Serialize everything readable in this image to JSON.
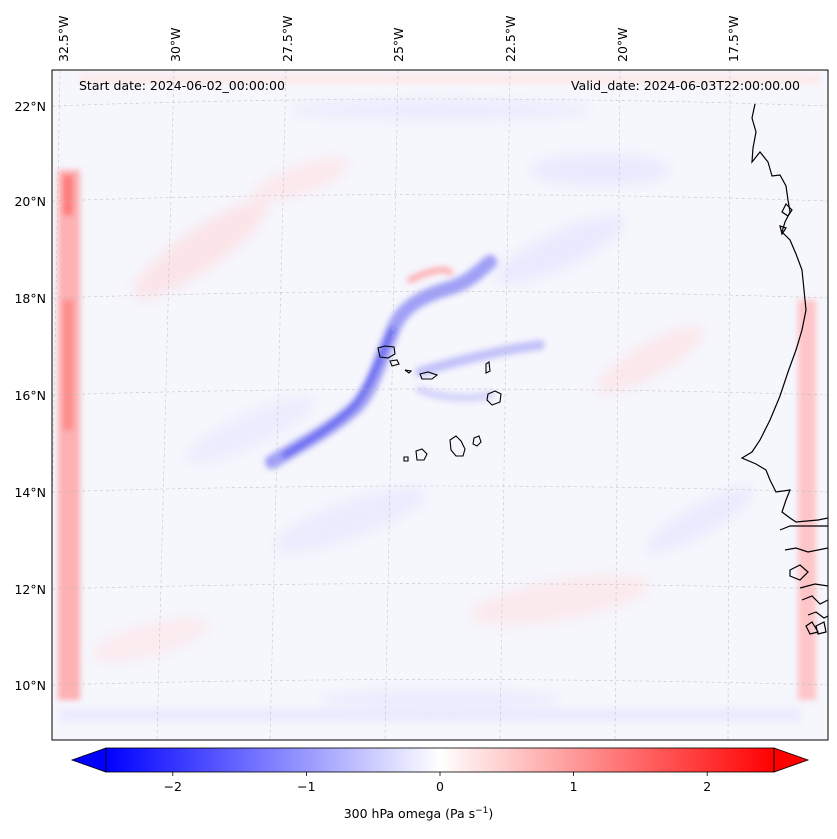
{
  "map": {
    "annotations": {
      "start_date": "Start date: 2024-06-02_00:00:00",
      "valid_date": "Valid_date: 2024-06-03T22:00:00.00"
    },
    "lon_labels": [
      "32.5°W",
      "30°W",
      "27.5°W",
      "25°W",
      "22.5°W",
      "20°W",
      "17.5°W"
    ],
    "lat_labels": [
      "22°N",
      "20°N",
      "18°N",
      "16°N",
      "14°N",
      "12°N",
      "10°N"
    ],
    "gridlines": true,
    "coastline_color": "#000000",
    "features": [
      "Cape Verde islands",
      "West African coastline"
    ]
  },
  "colorbar": {
    "ticks": [
      "−2",
      "−1",
      "0",
      "1",
      "2"
    ],
    "tick_values": [
      -2,
      -1,
      0,
      1,
      2
    ],
    "range": [
      -2.5,
      2.5
    ],
    "label_text": "300 hPa omega (Pa s",
    "label_sup": "−1",
    "label_close": ")",
    "colormap": "bwr",
    "colors": {
      "min": "#0000ff",
      "mid": "#ffffff",
      "max": "#ff0000"
    },
    "extend": "both"
  }
}
